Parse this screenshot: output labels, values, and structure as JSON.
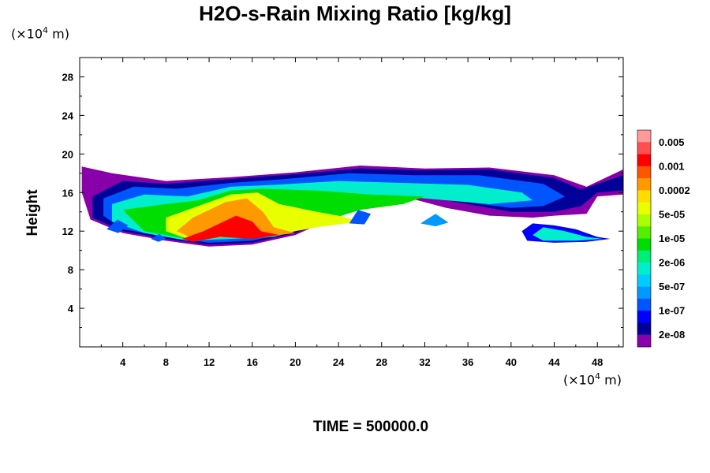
{
  "chart_data": {
    "type": "heatmap",
    "title": "H2O-s-Rain Mixing Ratio [kg/kg]",
    "ylabel": "Height",
    "x_unit": {
      "prefix": "(×10",
      "exp": "4",
      "suffix": " m)"
    },
    "y_unit": {
      "prefix": "(×10",
      "exp": "4",
      "suffix": " m)"
    },
    "xlim": [
      0,
      50.4
    ],
    "ylim": [
      0,
      30
    ],
    "x_ticks": [
      4,
      8,
      12,
      16,
      20,
      24,
      28,
      32,
      36,
      40,
      44,
      48
    ],
    "y_ticks": [
      4,
      8,
      12,
      16,
      20,
      24,
      28
    ],
    "time_label": "TIME = 500000.0",
    "colorbar": {
      "colors": [
        "#ff9a9a",
        "#ff5050",
        "#ff0000",
        "#ff5500",
        "#ff9900",
        "#ffdd00",
        "#e8ff00",
        "#aaff00",
        "#55ee00",
        "#00dd00",
        "#00ee77",
        "#00eecc",
        "#00ccff",
        "#0099ff",
        "#0055ff",
        "#0000ff",
        "#000099",
        "#8800aa"
      ],
      "labels": [
        "0.005",
        "0.001",
        "0.0002",
        "5e-05",
        "1e-05",
        "2e-06",
        "5e-07",
        "1e-07",
        "2e-08"
      ]
    },
    "field_regions": [
      {
        "level": 17,
        "points": [
          [
            0.2,
            18.7
          ],
          [
            3,
            18
          ],
          [
            8,
            17.2
          ],
          [
            14,
            17.6
          ],
          [
            20,
            18.1
          ],
          [
            26,
            18.8
          ],
          [
            32,
            18.5
          ],
          [
            38,
            18.6
          ],
          [
            44,
            17.8
          ],
          [
            47,
            16.6
          ],
          [
            50.4,
            18.4
          ],
          [
            50.4,
            15.8
          ],
          [
            48,
            15.6
          ],
          [
            47,
            13.8
          ],
          [
            44,
            13.6
          ],
          [
            42,
            13.4
          ],
          [
            38,
            13.6
          ],
          [
            34,
            14.4
          ],
          [
            30,
            15.6
          ],
          [
            28,
            15
          ],
          [
            24,
            13.6
          ],
          [
            20,
            11.6
          ],
          [
            16,
            10.6
          ],
          [
            12,
            10.4
          ],
          [
            8,
            11
          ],
          [
            4,
            11.8
          ],
          [
            1,
            13.2
          ],
          [
            0.2,
            16
          ]
        ]
      },
      {
        "level": 16,
        "points": [
          [
            1.2,
            15.6
          ],
          [
            4,
            17.2
          ],
          [
            8,
            16.9
          ],
          [
            14,
            17.4
          ],
          [
            20,
            17.9
          ],
          [
            26,
            18.5
          ],
          [
            32,
            18.3
          ],
          [
            38,
            18.4
          ],
          [
            44,
            17.5
          ],
          [
            46.5,
            16.3
          ],
          [
            50.4,
            17.8
          ],
          [
            50.4,
            16.2
          ],
          [
            48,
            16
          ],
          [
            46.5,
            14.6
          ],
          [
            44,
            14
          ],
          [
            40,
            14
          ],
          [
            36,
            14.8
          ],
          [
            32,
            15.6
          ],
          [
            28,
            15.2
          ],
          [
            24,
            13.8
          ],
          [
            20,
            11.8
          ],
          [
            16,
            10.8
          ],
          [
            12,
            10.6
          ],
          [
            8,
            11.2
          ],
          [
            4,
            12
          ],
          [
            1.2,
            13.4
          ]
        ]
      },
      {
        "level": 14,
        "points": [
          [
            2.2,
            15.4
          ],
          [
            5,
            16.6
          ],
          [
            9,
            16.4
          ],
          [
            14,
            17
          ],
          [
            19,
            17.4
          ],
          [
            25,
            18
          ],
          [
            31,
            17.8
          ],
          [
            37,
            17.8
          ],
          [
            43,
            16.9
          ],
          [
            45,
            15.6
          ],
          [
            43,
            14.6
          ],
          [
            40,
            14.4
          ],
          [
            36,
            15
          ],
          [
            32,
            15.6
          ],
          [
            28,
            15.2
          ],
          [
            24,
            14
          ],
          [
            20,
            12
          ],
          [
            16,
            11
          ],
          [
            12,
            10.8
          ],
          [
            8,
            11.4
          ],
          [
            4,
            12.2
          ],
          [
            2.2,
            13.6
          ]
        ]
      },
      {
        "level": 11,
        "points": [
          [
            3,
            14.8
          ],
          [
            6,
            15.8
          ],
          [
            10,
            15.6
          ],
          [
            14,
            16.6
          ],
          [
            18,
            16.8
          ],
          [
            24,
            17.2
          ],
          [
            30,
            17
          ],
          [
            36,
            16.8
          ],
          [
            41,
            16
          ],
          [
            42,
            15.2
          ],
          [
            38,
            14.8
          ],
          [
            34,
            15.2
          ],
          [
            30,
            15.6
          ],
          [
            26,
            14.6
          ],
          [
            22,
            12.6
          ],
          [
            18,
            11.4
          ],
          [
            14,
            11.2
          ],
          [
            10,
            11
          ],
          [
            6,
            11.8
          ],
          [
            3,
            13
          ]
        ]
      },
      {
        "level": 9,
        "points": [
          [
            4,
            14.2
          ],
          [
            8,
            14.8
          ],
          [
            11,
            15.2
          ],
          [
            14,
            16.2
          ],
          [
            17,
            16.4
          ],
          [
            22,
            16.2
          ],
          [
            27,
            15.8
          ],
          [
            32,
            15.6
          ],
          [
            30,
            14.8
          ],
          [
            26,
            14.2
          ],
          [
            22,
            12.8
          ],
          [
            18,
            11.8
          ],
          [
            14,
            11.4
          ],
          [
            10,
            11.2
          ],
          [
            6,
            12
          ]
        ]
      },
      {
        "level": 6,
        "points": [
          [
            8,
            13.4
          ],
          [
            11,
            14.6
          ],
          [
            14,
            15.8
          ],
          [
            16.5,
            16
          ],
          [
            18.5,
            14.8
          ],
          [
            22,
            14
          ],
          [
            24,
            13.6
          ],
          [
            26,
            13
          ],
          [
            22,
            12.4
          ],
          [
            18,
            11.6
          ],
          [
            14,
            11.4
          ],
          [
            10,
            11.2
          ],
          [
            8,
            12
          ]
        ]
      },
      {
        "level": 4,
        "points": [
          [
            9,
            12
          ],
          [
            10.5,
            13.4
          ],
          [
            13.5,
            15
          ],
          [
            15.5,
            15.4
          ],
          [
            17,
            14
          ],
          [
            18,
            12.4
          ],
          [
            20,
            11.8
          ],
          [
            17,
            11.4
          ],
          [
            14,
            11.6
          ],
          [
            11,
            11
          ]
        ]
      },
      {
        "level": 2,
        "points": [
          [
            9.5,
            11.2
          ],
          [
            11.5,
            12
          ],
          [
            14.5,
            13.6
          ],
          [
            16,
            13
          ],
          [
            16.8,
            12
          ],
          [
            18.5,
            11.6
          ],
          [
            16,
            11.2
          ],
          [
            13,
            11.4
          ],
          [
            10.5,
            10.9
          ]
        ]
      },
      {
        "level": 14,
        "points": [
          [
            25,
            12.8
          ],
          [
            25.8,
            14.2
          ],
          [
            27,
            13.8
          ],
          [
            26.4,
            12.7
          ]
        ]
      },
      {
        "level": 14,
        "points": [
          [
            2.5,
            12.2
          ],
          [
            3.5,
            13.2
          ],
          [
            4.5,
            12.6
          ],
          [
            3.6,
            11.8
          ]
        ]
      },
      {
        "level": 13,
        "points": [
          [
            31.6,
            12.8
          ],
          [
            33,
            13.8
          ],
          [
            34.2,
            12.9
          ],
          [
            33,
            12.5
          ]
        ]
      },
      {
        "level": 15,
        "points": [
          [
            41,
            12
          ],
          [
            42,
            12.8
          ],
          [
            44,
            12.6
          ],
          [
            46,
            12.2
          ],
          [
            48,
            11.4
          ],
          [
            49.2,
            11.2
          ],
          [
            47,
            10.9
          ],
          [
            44,
            10.8
          ],
          [
            41.5,
            11
          ]
        ]
      },
      {
        "level": 11,
        "points": [
          [
            42,
            11.6
          ],
          [
            43,
            12.4
          ],
          [
            45,
            12
          ],
          [
            47,
            11.4
          ],
          [
            48.5,
            11.2
          ],
          [
            46,
            11
          ],
          [
            43,
            11
          ]
        ]
      },
      {
        "level": 14,
        "points": [
          [
            6.6,
            11.2
          ],
          [
            7.4,
            11.7
          ],
          [
            8,
            11.2
          ],
          [
            7.3,
            10.9
          ]
        ]
      }
    ]
  }
}
